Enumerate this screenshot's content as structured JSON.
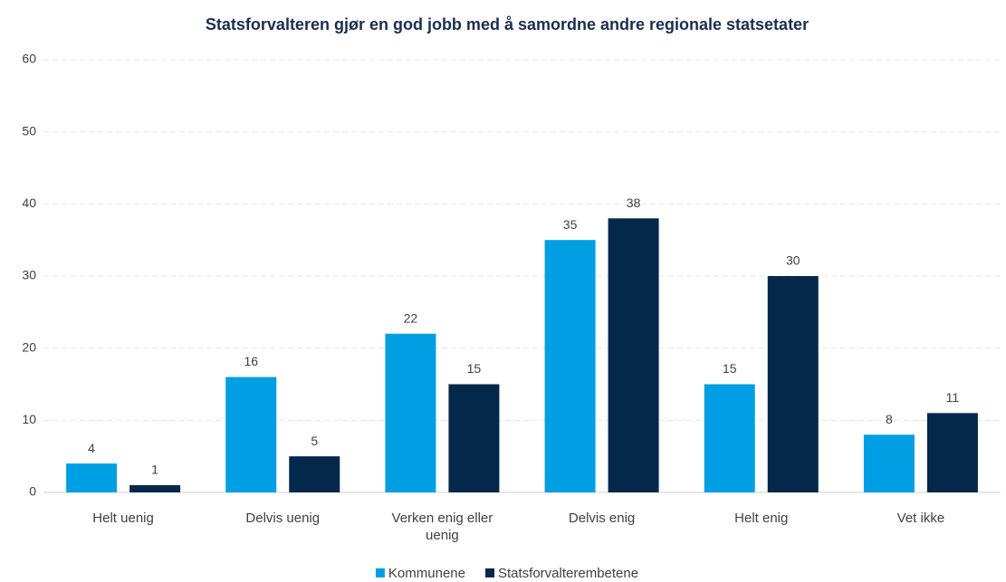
{
  "chart_data": {
    "type": "bar",
    "title": "Statsforvalteren gjør en god jobb med å samordne andre regionale statsetater",
    "categories": [
      "Helt uenig",
      "Delvis uenig",
      "Verken enig eller uenig",
      "Delvis enig",
      "Helt enig",
      "Vet ikke"
    ],
    "series": [
      {
        "name": "Kommunene",
        "color": "#009fe3",
        "values": [
          4,
          16,
          22,
          35,
          15,
          8
        ]
      },
      {
        "name": "Statsforvalterembetene",
        "color": "#03284a",
        "values": [
          1,
          5,
          15,
          38,
          30,
          11
        ]
      }
    ],
    "ylim": [
      0,
      60
    ],
    "yticks": [
      0,
      10,
      20,
      30,
      40,
      50,
      60
    ],
    "grid": true,
    "legend": "bottom"
  }
}
